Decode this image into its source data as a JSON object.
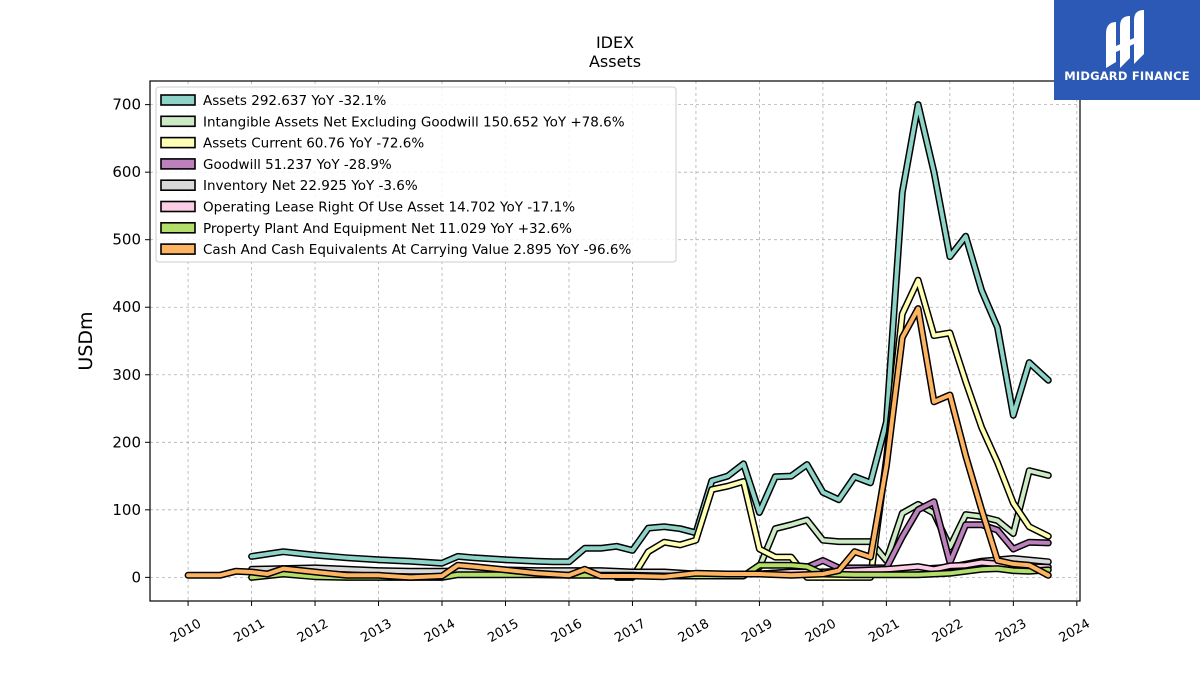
{
  "logo": {
    "text": "MIDGARD FINANCE"
  },
  "chart_data": {
    "type": "line",
    "title": "IDEX",
    "subtitle": "Assets",
    "xlabel": "",
    "ylabel": "USDm",
    "xlim": [
      2009.4,
      2024.05
    ],
    "ylim": [
      -35,
      735
    ],
    "yticks": [
      0,
      100,
      200,
      300,
      400,
      500,
      600,
      700
    ],
    "xticks": [
      2010,
      2011,
      2012,
      2013,
      2014,
      2015,
      2016,
      2017,
      2018,
      2019,
      2020,
      2021,
      2022,
      2023,
      2024
    ],
    "grid": true,
    "legend_position": "top-left",
    "series": [
      {
        "name": "Assets",
        "legend": "Assets  292.637 YoY -32.1%",
        "color": "#8dd3c7",
        "points": [
          [
            2011.0,
            31
          ],
          [
            2011.5,
            38
          ],
          [
            2012.0,
            33
          ],
          [
            2012.5,
            29
          ],
          [
            2013.0,
            26
          ],
          [
            2013.5,
            24
          ],
          [
            2014.0,
            21
          ],
          [
            2014.25,
            31
          ],
          [
            2014.5,
            29
          ],
          [
            2015.0,
            26
          ],
          [
            2015.5,
            24
          ],
          [
            2015.75,
            23
          ],
          [
            2016.0,
            23
          ],
          [
            2016.25,
            43
          ],
          [
            2016.5,
            43
          ],
          [
            2016.75,
            46
          ],
          [
            2017.0,
            40
          ],
          [
            2017.25,
            73
          ],
          [
            2017.5,
            75
          ],
          [
            2017.75,
            72
          ],
          [
            2018.0,
            66
          ],
          [
            2018.25,
            143
          ],
          [
            2018.5,
            150
          ],
          [
            2018.75,
            168
          ],
          [
            2019.0,
            96
          ],
          [
            2019.25,
            149
          ],
          [
            2019.5,
            150
          ],
          [
            2019.75,
            167
          ],
          [
            2020.0,
            126
          ],
          [
            2020.25,
            115
          ],
          [
            2020.5,
            149
          ],
          [
            2020.75,
            140
          ],
          [
            2021.0,
            230
          ],
          [
            2021.25,
            570
          ],
          [
            2021.5,
            700
          ],
          [
            2021.75,
            600
          ],
          [
            2022.0,
            475
          ],
          [
            2022.25,
            505
          ],
          [
            2022.5,
            425
          ],
          [
            2022.75,
            370
          ],
          [
            2023.0,
            240
          ],
          [
            2023.25,
            318
          ],
          [
            2023.55,
            292
          ]
        ]
      },
      {
        "name": "Intangible Assets Net Excluding Goodwill",
        "legend": "Intangible Assets Net Excluding Goodwill  150.652 YoY +78.6%",
        "color": "#ccebc5",
        "points": [
          [
            2019.0,
            15
          ],
          [
            2019.25,
            72
          ],
          [
            2019.5,
            78
          ],
          [
            2019.75,
            85
          ],
          [
            2020.0,
            55
          ],
          [
            2020.25,
            53
          ],
          [
            2020.5,
            53
          ],
          [
            2020.75,
            53
          ],
          [
            2021.0,
            25
          ],
          [
            2021.25,
            95
          ],
          [
            2021.5,
            108
          ],
          [
            2021.75,
            95
          ],
          [
            2022.0,
            45
          ],
          [
            2022.25,
            93
          ],
          [
            2022.5,
            90
          ],
          [
            2022.75,
            84
          ],
          [
            2023.0,
            65
          ],
          [
            2023.25,
            158
          ],
          [
            2023.55,
            151
          ]
        ]
      },
      {
        "name": "Assets Current",
        "legend": "Assets Current  60.76 YoY -72.6%",
        "color": "#ffffb3",
        "points": [
          [
            2016.75,
            0
          ],
          [
            2017.0,
            0
          ],
          [
            2017.25,
            38
          ],
          [
            2017.5,
            52
          ],
          [
            2017.75,
            48
          ],
          [
            2018.0,
            55
          ],
          [
            2018.25,
            130
          ],
          [
            2018.5,
            135
          ],
          [
            2018.75,
            142
          ],
          [
            2019.0,
            42
          ],
          [
            2019.25,
            30
          ],
          [
            2019.5,
            30
          ],
          [
            2019.75,
            0
          ],
          [
            2020.75,
            0
          ],
          [
            2021.0,
            175
          ],
          [
            2021.25,
            390
          ],
          [
            2021.5,
            440
          ],
          [
            2021.75,
            358
          ],
          [
            2022.0,
            362
          ],
          [
            2022.25,
            290
          ],
          [
            2022.5,
            222
          ],
          [
            2022.75,
            170
          ],
          [
            2023.0,
            110
          ],
          [
            2023.25,
            75
          ],
          [
            2023.55,
            61
          ]
        ]
      },
      {
        "name": "Goodwill",
        "legend": "Goodwill  51.237 YoY -28.9%",
        "color": "#bc80bd",
        "points": [
          [
            2019.75,
            15
          ],
          [
            2020.0,
            25
          ],
          [
            2020.25,
            14
          ],
          [
            2020.5,
            14
          ],
          [
            2020.75,
            14
          ],
          [
            2021.0,
            14
          ],
          [
            2021.25,
            60
          ],
          [
            2021.5,
            100
          ],
          [
            2021.75,
            112
          ],
          [
            2022.0,
            22
          ],
          [
            2022.25,
            78
          ],
          [
            2022.5,
            78
          ],
          [
            2022.75,
            70
          ],
          [
            2023.0,
            42
          ],
          [
            2023.25,
            52
          ],
          [
            2023.55,
            51
          ]
        ]
      },
      {
        "name": "Inventory Net",
        "legend": "Inventory Net  22.925 YoY -3.6%",
        "color": "#d9d9d9",
        "points": [
          [
            2011.0,
            12
          ],
          [
            2011.5,
            13
          ],
          [
            2012.0,
            14
          ],
          [
            2012.5,
            12
          ],
          [
            2013.0,
            10
          ],
          [
            2013.5,
            9
          ],
          [
            2014.0,
            9
          ],
          [
            2014.5,
            10
          ],
          [
            2015.0,
            11
          ],
          [
            2015.5,
            10
          ],
          [
            2016.0,
            10
          ],
          [
            2016.5,
            10
          ],
          [
            2017.0,
            8
          ],
          [
            2017.5,
            8
          ],
          [
            2018.0,
            5
          ],
          [
            2018.5,
            5
          ],
          [
            2019.0,
            5
          ],
          [
            2019.5,
            8
          ],
          [
            2020.0,
            8
          ],
          [
            2020.5,
            8
          ],
          [
            2021.0,
            10
          ],
          [
            2021.5,
            12
          ],
          [
            2022.0,
            15
          ],
          [
            2022.5,
            24
          ],
          [
            2023.0,
            28
          ],
          [
            2023.55,
            23
          ]
        ]
      },
      {
        "name": "Operating Lease Right Of Use Asset",
        "legend": "Operating Lease Right Of Use Asset  14.702 YoY -17.1%",
        "color": "#fccde5",
        "points": [
          [
            2019.0,
            5
          ],
          [
            2019.5,
            8
          ],
          [
            2020.0,
            8
          ],
          [
            2020.5,
            10
          ],
          [
            2021.0,
            12
          ],
          [
            2021.5,
            16
          ],
          [
            2021.75,
            12
          ],
          [
            2022.0,
            17
          ],
          [
            2022.25,
            18
          ],
          [
            2022.5,
            22
          ],
          [
            2022.75,
            20
          ],
          [
            2023.0,
            18
          ],
          [
            2023.25,
            16
          ],
          [
            2023.55,
            15
          ]
        ]
      },
      {
        "name": "Property Plant And Equipment Net",
        "legend": "Property Plant And Equipment Net  11.029 YoY +32.6%",
        "color": "#b3de69",
        "points": [
          [
            2011.0,
            0
          ],
          [
            2011.5,
            5
          ],
          [
            2012.0,
            1
          ],
          [
            2012.5,
            0
          ],
          [
            2013.0,
            0
          ],
          [
            2013.5,
            0
          ],
          [
            2014.0,
            0
          ],
          [
            2014.25,
            4
          ],
          [
            2014.5,
            4
          ],
          [
            2015.0,
            4
          ],
          [
            2015.5,
            4
          ],
          [
            2016.0,
            3
          ],
          [
            2016.5,
            3
          ],
          [
            2017.0,
            3
          ],
          [
            2017.5,
            2
          ],
          [
            2018.0,
            2
          ],
          [
            2018.5,
            2
          ],
          [
            2018.75,
            2
          ],
          [
            2019.0,
            18
          ],
          [
            2019.25,
            18
          ],
          [
            2019.5,
            18
          ],
          [
            2019.75,
            16
          ],
          [
            2020.0,
            5
          ],
          [
            2020.5,
            4
          ],
          [
            2021.0,
            4
          ],
          [
            2021.5,
            4
          ],
          [
            2021.75,
            5
          ],
          [
            2022.0,
            6
          ],
          [
            2022.5,
            12
          ],
          [
            2022.75,
            13
          ],
          [
            2023.0,
            10
          ],
          [
            2023.25,
            9
          ],
          [
            2023.55,
            11
          ]
        ]
      },
      {
        "name": "Cash And Cash Equivalents At Carrying Value",
        "legend": "Cash And Cash Equivalents At Carrying Value  2.895 YoY -96.6%",
        "color": "#fdb462",
        "points": [
          [
            2010.0,
            3
          ],
          [
            2010.5,
            3
          ],
          [
            2010.75,
            9
          ],
          [
            2011.0,
            8
          ],
          [
            2011.25,
            5
          ],
          [
            2011.5,
            13
          ],
          [
            2012.0,
            8
          ],
          [
            2012.5,
            3
          ],
          [
            2013.0,
            3
          ],
          [
            2013.5,
            0
          ],
          [
            2014.0,
            2
          ],
          [
            2014.25,
            18
          ],
          [
            2014.5,
            16
          ],
          [
            2015.0,
            11
          ],
          [
            2015.5,
            6
          ],
          [
            2016.0,
            3
          ],
          [
            2016.25,
            12
          ],
          [
            2016.5,
            2
          ],
          [
            2017.0,
            2
          ],
          [
            2017.5,
            1
          ],
          [
            2018.0,
            6
          ],
          [
            2018.5,
            5
          ],
          [
            2019.0,
            5
          ],
          [
            2019.5,
            3
          ],
          [
            2020.0,
            5
          ],
          [
            2020.25,
            10
          ],
          [
            2020.5,
            38
          ],
          [
            2020.75,
            30
          ],
          [
            2021.0,
            165
          ],
          [
            2021.25,
            355
          ],
          [
            2021.5,
            398
          ],
          [
            2021.75,
            260
          ],
          [
            2022.0,
            270
          ],
          [
            2022.25,
            180
          ],
          [
            2022.5,
            100
          ],
          [
            2022.75,
            25
          ],
          [
            2023.0,
            20
          ],
          [
            2023.25,
            18
          ],
          [
            2023.55,
            3
          ]
        ]
      }
    ]
  }
}
